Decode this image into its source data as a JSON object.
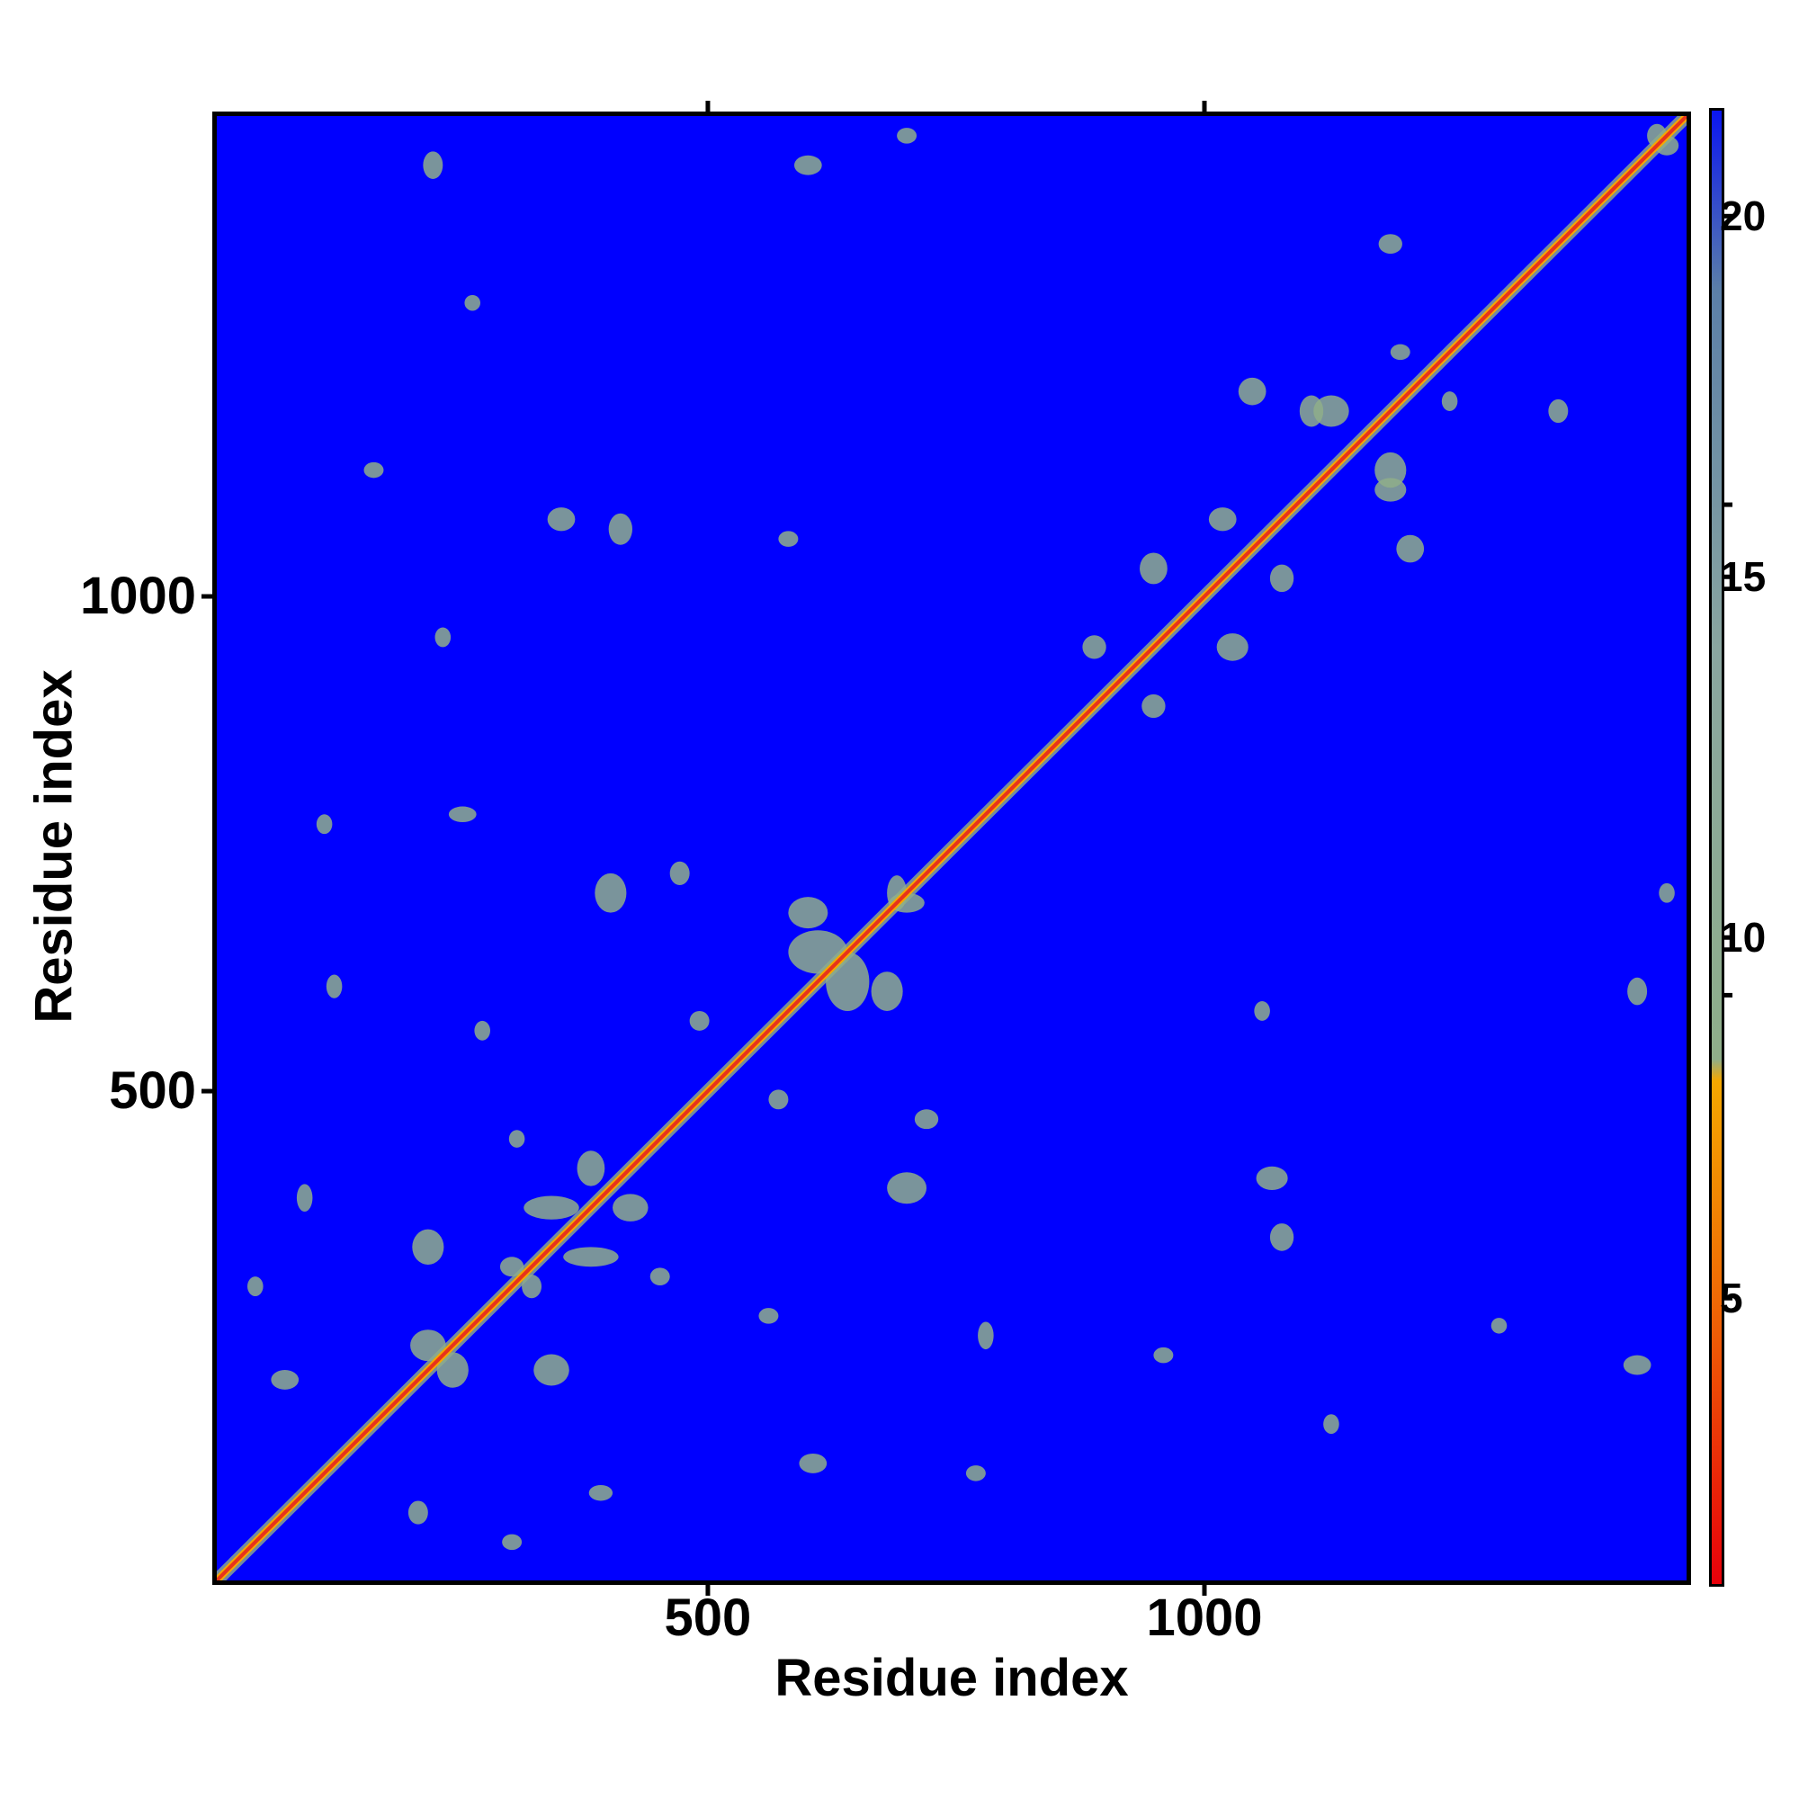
{
  "chart_data": {
    "type": "heatmap",
    "title": "",
    "xlabel": "Residue index",
    "ylabel": "Residue index",
    "xlim": [
      1,
      1490
    ],
    "ylim": [
      1,
      1490
    ],
    "x_ticks": [
      500,
      1000
    ],
    "y_ticks": [
      500,
      1000
    ],
    "x_tick_labels": [
      "500",
      "1000"
    ],
    "y_tick_labels": [
      "500",
      "1000"
    ],
    "colorbar": {
      "range": [
        1,
        21.5
      ],
      "ticks": [
        5,
        10,
        15,
        20
      ],
      "tick_labels": [
        "5",
        "10",
        "15",
        "20"
      ],
      "colors": [
        {
          "value": 1,
          "color": "#e8000a"
        },
        {
          "value": 5,
          "color": "#ef6a05"
        },
        {
          "value": 8,
          "color": "#f5a800"
        },
        {
          "value": 8.3,
          "color": "#8fae8a"
        },
        {
          "value": 14,
          "color": "#8aa6a0"
        },
        {
          "value": 19,
          "color": "#5b7fa8"
        },
        {
          "value": 21.5,
          "color": "#0b16f0"
        }
      ]
    },
    "background_value": 21.5,
    "background_color": "#0000ff",
    "diagonal": {
      "from": 1,
      "to": 1490,
      "value": 3.5,
      "color": "#e8331a"
    },
    "diagonal_band_color": "#8fae8a",
    "contact_color": "#8fae8a",
    "contact_patches": [
      [
        380,
        330,
        28,
        10
      ],
      [
        340,
        380,
        28,
        12
      ],
      [
        450,
        310,
        10,
        9
      ],
      [
        305,
        450,
        8,
        9
      ],
      [
        420,
        380,
        18,
        14
      ],
      [
        380,
        420,
        14,
        18
      ],
      [
        605,
        120,
        14,
        10
      ],
      [
        120,
        605,
        8,
        12
      ],
      [
        70,
        205,
        14,
        10
      ],
      [
        205,
        70,
        10,
        12
      ],
      [
        90,
        390,
        8,
        14
      ],
      [
        390,
        90,
        12,
        8
      ],
      [
        240,
        215,
        16,
        18
      ],
      [
        215,
        240,
        18,
        16
      ],
      [
        340,
        215,
        18,
        16
      ],
      [
        215,
        340,
        16,
        18
      ],
      [
        610,
        640,
        30,
        22
      ],
      [
        640,
        610,
        22,
        30
      ],
      [
        700,
        690,
        18,
        10
      ],
      [
        690,
        700,
        10,
        18
      ],
      [
        600,
        680,
        20,
        16
      ],
      [
        680,
        600,
        16,
        20
      ],
      [
        700,
        400,
        20,
        16
      ],
      [
        400,
        700,
        16,
        20
      ],
      [
        1070,
        410,
        16,
        12
      ],
      [
        410,
        1070,
        12,
        16
      ],
      [
        1080,
        350,
        12,
        14
      ],
      [
        350,
        1080,
        14,
        12
      ],
      [
        1190,
        1110,
        16,
        12
      ],
      [
        1110,
        1190,
        12,
        16
      ],
      [
        1210,
        1050,
        14,
        14
      ],
      [
        1050,
        1210,
        14,
        14
      ],
      [
        1360,
        1190,
        10,
        12
      ],
      [
        1190,
        1360,
        12,
        10
      ],
      [
        1130,
        1190,
        18,
        16
      ],
      [
        1190,
        1130,
        16,
        18
      ],
      [
        950,
        1030,
        14,
        16
      ],
      [
        1030,
        950,
        16,
        14
      ],
      [
        890,
        950,
        12,
        12
      ],
      [
        950,
        890,
        12,
        12
      ],
      [
        1020,
        1080,
        14,
        12
      ],
      [
        1080,
        1020,
        12,
        14
      ],
      [
        300,
        320,
        12,
        10
      ],
      [
        320,
        300,
        10,
        12
      ],
      [
        40,
        300,
        8,
        10
      ],
      [
        300,
        40,
        10,
        8
      ],
      [
        770,
        110,
        10,
        8
      ],
      [
        110,
        770,
        8,
        10
      ],
      [
        780,
        250,
        8,
        14
      ],
      [
        250,
        780,
        14,
        8
      ],
      [
        960,
        230,
        10,
        8
      ],
      [
        230,
        960,
        8,
        10
      ],
      [
        560,
        270,
        10,
        8
      ],
      [
        270,
        560,
        8,
        10
      ],
      [
        570,
        490,
        10,
        10
      ],
      [
        490,
        570,
        10,
        10
      ],
      [
        580,
        1060,
        10,
        8
      ],
      [
        1060,
        580,
        8,
        10
      ],
      [
        1200,
        1250,
        10,
        8
      ],
      [
        1250,
        1200,
        8,
        10
      ],
      [
        1440,
        600,
        10,
        14
      ],
      [
        600,
        1440,
        14,
        10
      ],
      [
        1470,
        1460,
        12,
        10
      ],
      [
        1460,
        1470,
        10,
        12
      ],
      [
        1470,
        700,
        8,
        10
      ],
      [
        700,
        1470,
        10,
        8
      ],
      [
        720,
        470,
        12,
        10
      ],
      [
        470,
        720,
        10,
        12
      ],
      [
        160,
        1130,
        10,
        8
      ],
      [
        1130,
        160,
        8,
        10
      ],
      [
        220,
        1440,
        10,
        14
      ],
      [
        1440,
        220,
        14,
        10
      ],
      [
        260,
        1300,
        8,
        8
      ],
      [
        1300,
        260,
        8,
        8
      ]
    ]
  }
}
